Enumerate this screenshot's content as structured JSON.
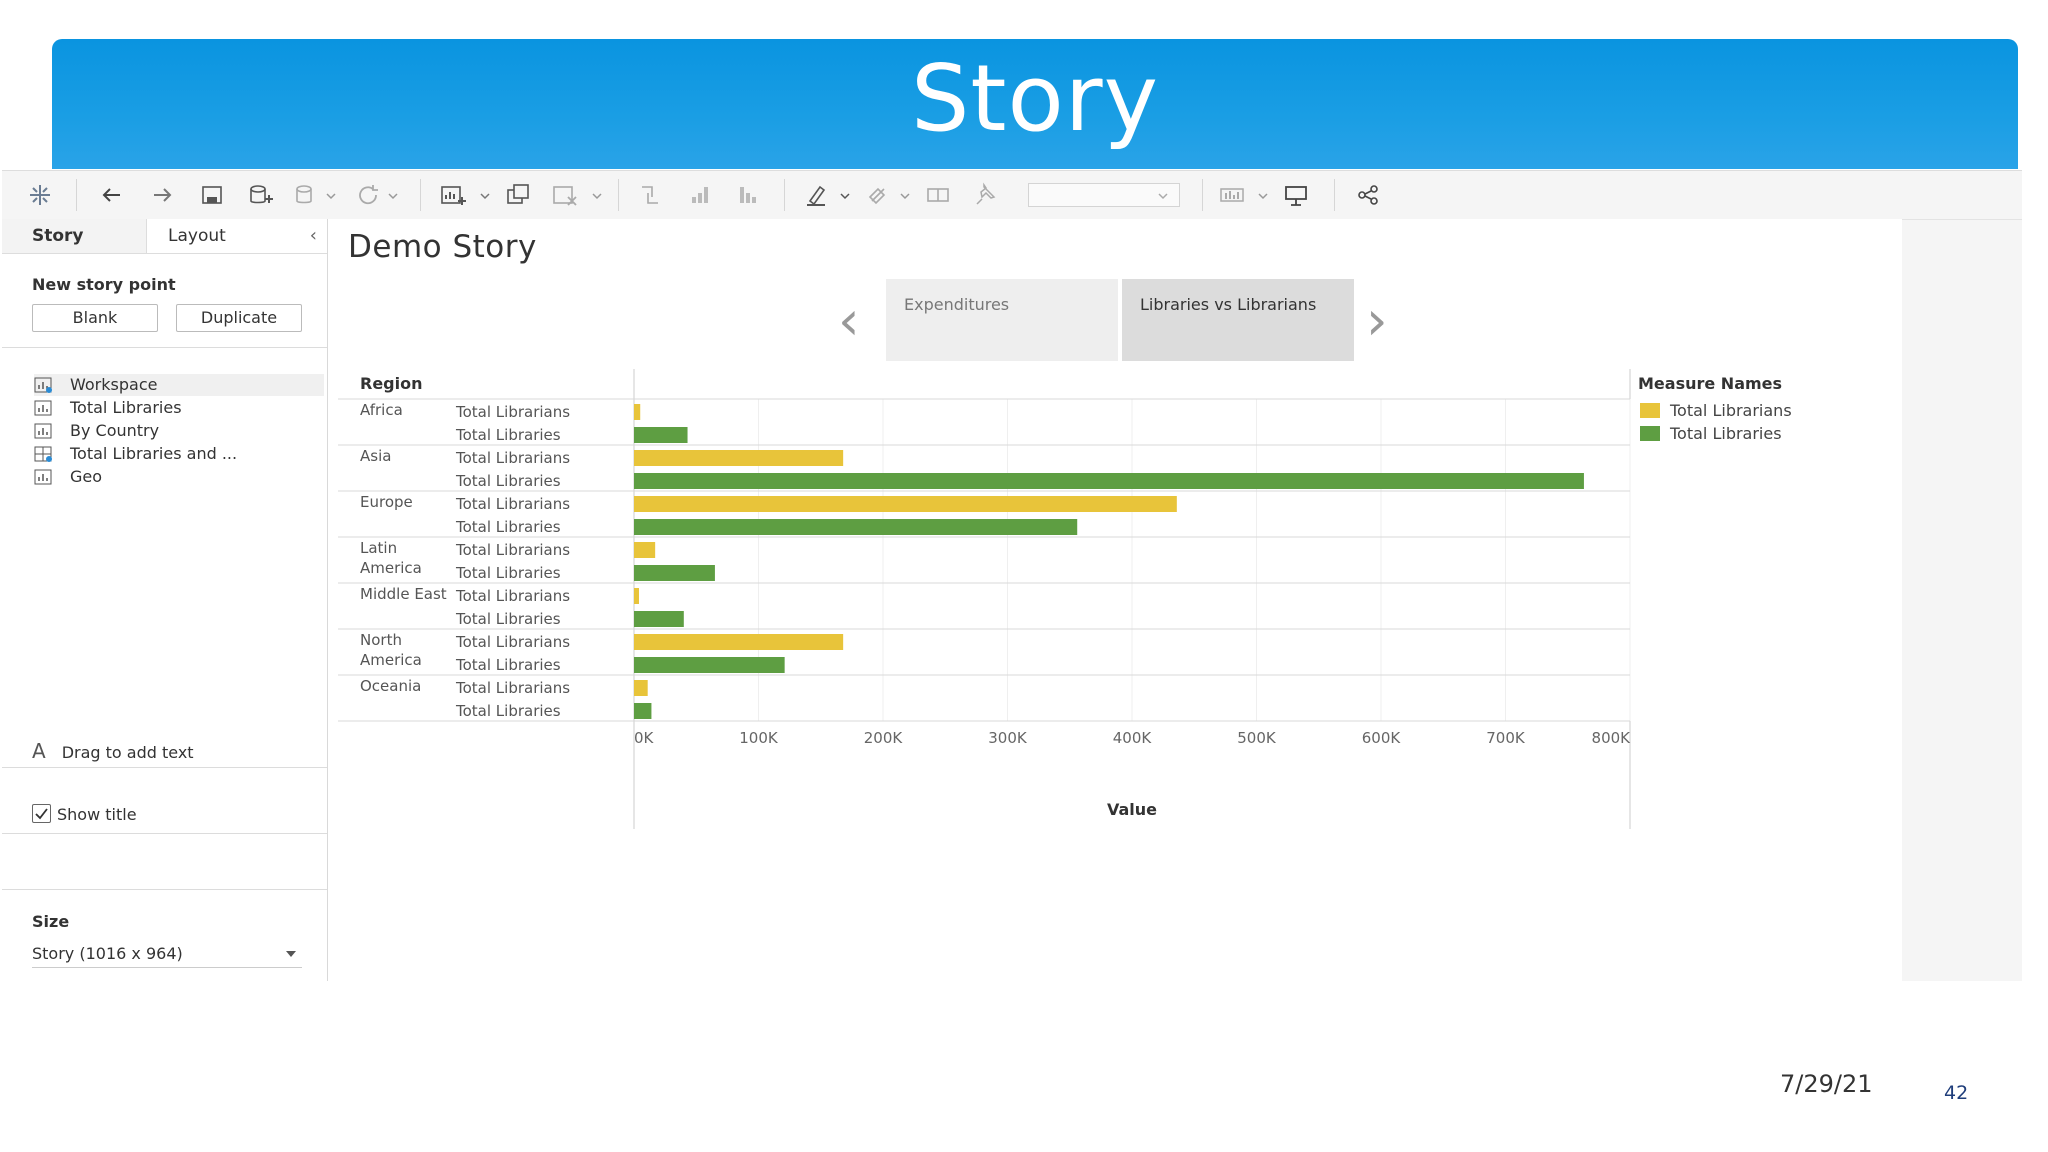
{
  "slide": {
    "title": "Story",
    "date": "7/29/21",
    "page_number": "42"
  },
  "sidebar": {
    "tabs": [
      {
        "label": "Story"
      },
      {
        "label": "Layout"
      }
    ],
    "collapse_icon": "chevron-left-icon",
    "new_story_point": {
      "heading": "New story point",
      "blank_label": "Blank",
      "duplicate_label": "Duplicate"
    },
    "sheets": [
      {
        "label": "Workspace",
        "icon": "sheet-icon"
      },
      {
        "label": "Total Libraries",
        "icon": "sheet-icon"
      },
      {
        "label": "By Country",
        "icon": "sheet-icon"
      },
      {
        "label": "Total Libraries and ...",
        "icon": "dashboard-icon"
      },
      {
        "label": "Geo",
        "icon": "sheet-icon"
      }
    ],
    "drag_text": {
      "icon_glyph": "A",
      "label": "Drag to add text"
    },
    "show_title": {
      "label": "Show title",
      "checked": true
    },
    "size": {
      "heading": "Size",
      "value": "Story (1016 x 964)"
    }
  },
  "story": {
    "title": "Demo Story",
    "points": [
      {
        "label": "Expenditures",
        "selected": false
      },
      {
        "label": "Libraries vs Librarians",
        "selected": true
      }
    ]
  },
  "colors": {
    "librarians": "#e8c43a",
    "libraries": "#5e9e42",
    "banner": "#1a9ee4"
  },
  "chart_data": {
    "type": "bar",
    "orientation": "horizontal",
    "row_header": "Region",
    "xlabel": "Value",
    "xlim": [
      0,
      800000
    ],
    "x_ticks": [
      "0K",
      "100K",
      "200K",
      "300K",
      "400K",
      "500K",
      "600K",
      "700K",
      "800K"
    ],
    "legend_title": "Measure Names",
    "legend_placement": "right",
    "grid": true,
    "regions": [
      {
        "name": "Africa",
        "measures": [
          {
            "name": "Total Librarians",
            "value": 5000
          },
          {
            "name": "Total Libraries",
            "value": 43000
          }
        ]
      },
      {
        "name": "Asia",
        "measures": [
          {
            "name": "Total Librarians",
            "value": 168000
          },
          {
            "name": "Total Libraries",
            "value": 763000
          }
        ]
      },
      {
        "name": "Europe",
        "measures": [
          {
            "name": "Total Librarians",
            "value": 436000
          },
          {
            "name": "Total Libraries",
            "value": 356000
          }
        ]
      },
      {
        "name": "Latin America",
        "measures": [
          {
            "name": "Total Librarians",
            "value": 17000
          },
          {
            "name": "Total Libraries",
            "value": 65000
          }
        ]
      },
      {
        "name": "Middle East",
        "measures": [
          {
            "name": "Total Librarians",
            "value": 4000
          },
          {
            "name": "Total Libraries",
            "value": 40000
          }
        ]
      },
      {
        "name": "North America",
        "measures": [
          {
            "name": "Total Librarians",
            "value": 168000
          },
          {
            "name": "Total Libraries",
            "value": 121000
          }
        ]
      },
      {
        "name": "Oceania",
        "measures": [
          {
            "name": "Total Librarians",
            "value": 11000
          },
          {
            "name": "Total Libraries",
            "value": 14000
          }
        ]
      }
    ],
    "series": [
      {
        "name": "Total Librarians"
      },
      {
        "name": "Total Libraries"
      }
    ]
  }
}
